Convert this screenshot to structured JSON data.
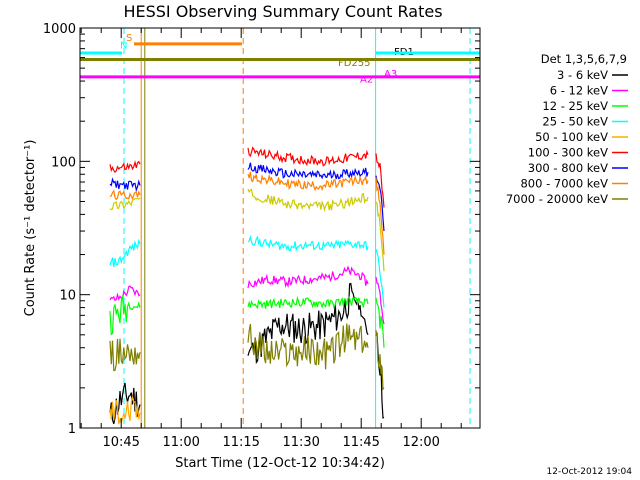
{
  "chart_data": {
    "type": "line",
    "title": "HESSI Observing Summary Count Rates",
    "xlabel": "Start Time (12-Oct-12 10:34:42)",
    "ylabel": "Count Rate (s⁻¹ detector⁻¹)",
    "ylog": true,
    "ylim": [
      1,
      1000
    ],
    "xlim_minutes": [
      0,
      100
    ],
    "x_tick_labels": [
      "10:45",
      "11:00",
      "11:15",
      "11:30",
      "11:45",
      "12:00"
    ],
    "x_tick_minutes": [
      10.3,
      25.3,
      40.3,
      55.3,
      70.3,
      85.3
    ],
    "y_ticks": [
      1,
      10,
      100,
      1000
    ],
    "y_tick_labels": [
      "1",
      "10",
      "100",
      "1000"
    ],
    "legend_header": "Det 1,3,5,6,7,9",
    "legend_position": "right",
    "series": [
      {
        "name": "3 - 6 keV",
        "color": "#000000",
        "segments": [
          {
            "x": [
              7.5,
              10,
              12.5,
              15
            ],
            "y": [
              1.2,
              1.6,
              1.8,
              1.5
            ]
          },
          {
            "x": [
              42,
              45,
              50,
              55,
              60,
              65,
              68,
              70,
              72
            ],
            "y": [
              3.6,
              4.2,
              6,
              5.5,
              5.8,
              7,
              10,
              8,
              5
            ]
          },
          {
            "x": [
              74,
              75,
              76
            ],
            "y": [
              6,
              3,
              1.2
            ]
          }
        ]
      },
      {
        "name": "6 - 12 keV",
        "color": "#ff00ff",
        "segments": [
          {
            "x": [
              7.5,
              10,
              12.5,
              15
            ],
            "y": [
              9,
              9.5,
              11,
              10
            ]
          },
          {
            "x": [
              42,
              47,
              52,
              57,
              62,
              67,
              70,
              72
            ],
            "y": [
              12,
              13,
              12.5,
              13,
              13.5,
              15,
              14,
              12
            ]
          },
          {
            "x": [
              74,
              75,
              76
            ],
            "y": [
              14,
              10,
              6
            ]
          }
        ]
      },
      {
        "name": "12 - 25 keV",
        "color": "#00ff00",
        "segments": [
          {
            "x": [
              7.5,
              10,
              12.5,
              15
            ],
            "y": [
              6.5,
              7.5,
              8.5,
              8
            ]
          },
          {
            "x": [
              42,
              47,
              52,
              57,
              62,
              67,
              70,
              72
            ],
            "y": [
              8.5,
              8.5,
              8.7,
              8.8,
              8.5,
              9,
              8.8,
              8.5
            ]
          },
          {
            "x": [
              74,
              75,
              76
            ],
            "y": [
              9,
              7,
              4
            ]
          }
        ]
      },
      {
        "name": "25 - 50 keV",
        "color": "#00ffff",
        "segments": [
          {
            "x": [
              7.5,
              10,
              12.5,
              15
            ],
            "y": [
              17,
              18,
              22,
              24
            ]
          },
          {
            "x": [
              42,
              47,
              52,
              57,
              62,
              67,
              70,
              72
            ],
            "y": [
              26,
              24,
              23,
              23.5,
              23,
              24,
              24,
              23
            ]
          },
          {
            "x": [
              74,
              75,
              76
            ],
            "y": [
              22,
              15,
              8
            ]
          }
        ]
      },
      {
        "name": "50 - 100 keV",
        "color": "#ffaa00",
        "segments": [
          {
            "x": [
              7.5,
              10,
              12.5,
              15
            ],
            "y": [
              1.3,
              1.3,
              1.3,
              1.3
            ]
          }
        ]
      },
      {
        "name": "100 - 300 keV",
        "color": "#ff0000",
        "segments": [
          {
            "x": [
              7.5,
              10,
              12.5,
              15
            ],
            "y": [
              88,
              90,
              91,
              95
            ]
          },
          {
            "x": [
              42,
              47,
              52,
              57,
              62,
              67,
              70,
              72
            ],
            "y": [
              120,
              112,
              106,
              102,
              100,
              106,
              110,
              112
            ]
          },
          {
            "x": [
              74,
              75,
              76
            ],
            "y": [
              108,
              90,
              45
            ]
          }
        ]
      },
      {
        "name": "300 - 800 keV",
        "color": "#0000ff",
        "segments": [
          {
            "x": [
              7.5,
              10,
              12.5,
              15
            ],
            "y": [
              68,
              67,
              66,
              66
            ]
          },
          {
            "x": [
              42,
              47,
              52,
              57,
              62,
              67,
              70,
              72
            ],
            "y": [
              92,
              85,
              80,
              79,
              78,
              82,
              83,
              83
            ]
          },
          {
            "x": [
              74,
              75,
              76
            ],
            "y": [
              80,
              65,
              30
            ]
          }
        ]
      },
      {
        "name": "800 - 7000 keV",
        "color": "#ff8000",
        "segments": [
          {
            "x": [
              7.5,
              10,
              12.5,
              15
            ],
            "y": [
              56,
              55,
              56,
              56
            ]
          },
          {
            "x": [
              42,
              47,
              52,
              57,
              62,
              67,
              70,
              72
            ],
            "y": [
              78,
              72,
              68,
              66,
              66,
              70,
              72,
              72
            ]
          },
          {
            "x": [
              74,
              75,
              76
            ],
            "y": [
              70,
              50,
              20
            ]
          }
        ]
      },
      {
        "name": "7000 - 20000 keV",
        "color": "#7f7f00",
        "segments": [
          {
            "x": [
              7.5,
              10,
              12.5,
              15
            ],
            "y": [
              3.5,
              3.6,
              3.7,
              3.7
            ]
          },
          {
            "x": [
              42,
              47,
              52,
              57,
              62,
              67,
              70,
              72
            ],
            "y": [
              4.8,
              3.6,
              3.7,
              3.8,
              3.6,
              4.8,
              4.5,
              4.0
            ]
          },
          {
            "x": [
              74,
              75,
              76
            ],
            "y": [
              4.5,
              3.5,
              2.0
            ]
          }
        ]
      },
      {
        "name": "",
        "color": "#cccc00",
        "segments": [
          {
            "x": [
              7.5,
              10,
              12.5,
              15
            ],
            "y": [
              46,
              47,
              49,
              53
            ]
          },
          {
            "x": [
              42,
              47,
              52,
              57,
              62,
              67,
              70,
              72
            ],
            "y": [
              58,
              52,
              48,
              46,
              46,
              49,
              52,
              54
            ]
          },
          {
            "x": [
              74,
              75,
              76
            ],
            "y": [
              50,
              35,
              15
            ]
          }
        ]
      }
    ],
    "flag_lines": [
      {
        "label": "N",
        "color": "#00ffff",
        "y": 650,
        "x": [
          0,
          10.5
        ],
        "label_x": 10.0,
        "label_y": 700
      },
      {
        "label": "S",
        "color": "#ff8000",
        "y": 760,
        "x": [
          13.5,
          40.5
        ],
        "label_x": 11.5,
        "label_y": 800
      },
      {
        "label": "FD1",
        "color": "#000000",
        "y": null,
        "x": [],
        "label_x": 78.5,
        "label_y": 630
      },
      {
        "label": "FD255",
        "color": "#7f7f00",
        "y": 580,
        "x": [
          0,
          100
        ],
        "label_x": 64.5,
        "label_y": 520
      },
      {
        "label": "A2",
        "color": "#ff00ff",
        "y": 430,
        "x": [
          0,
          100
        ],
        "label_x": 70.0,
        "label_y": 390
      },
      {
        "label": "A3",
        "color": "#ff00ff",
        "y": null,
        "x": [],
        "label_x": 76.0,
        "label_y": 430
      },
      {
        "label": "",
        "color": "#00ffff",
        "y": 650,
        "x": [
          74,
          100
        ],
        "label_x": null,
        "label_y": null
      }
    ],
    "vertical_lines": [
      {
        "x": 0,
        "color": "#00ffff",
        "style": "solid"
      },
      {
        "x": 11,
        "color": "#00ffff",
        "style": "dashed"
      },
      {
        "x": 15.3,
        "color": "#ff8000",
        "style": "solid"
      },
      {
        "x": 16.2,
        "color": "#7f7f00",
        "style": "solid"
      },
      {
        "x": 40.8,
        "color": "#ff8000",
        "style": "dashed"
      },
      {
        "x": 73.9,
        "color": "#00ffff",
        "style": "solid"
      },
      {
        "x": 97.5,
        "color": "#00ffff",
        "style": "dashed"
      }
    ]
  },
  "footer": {
    "timestamp": "12-Oct-2012 19:04"
  }
}
